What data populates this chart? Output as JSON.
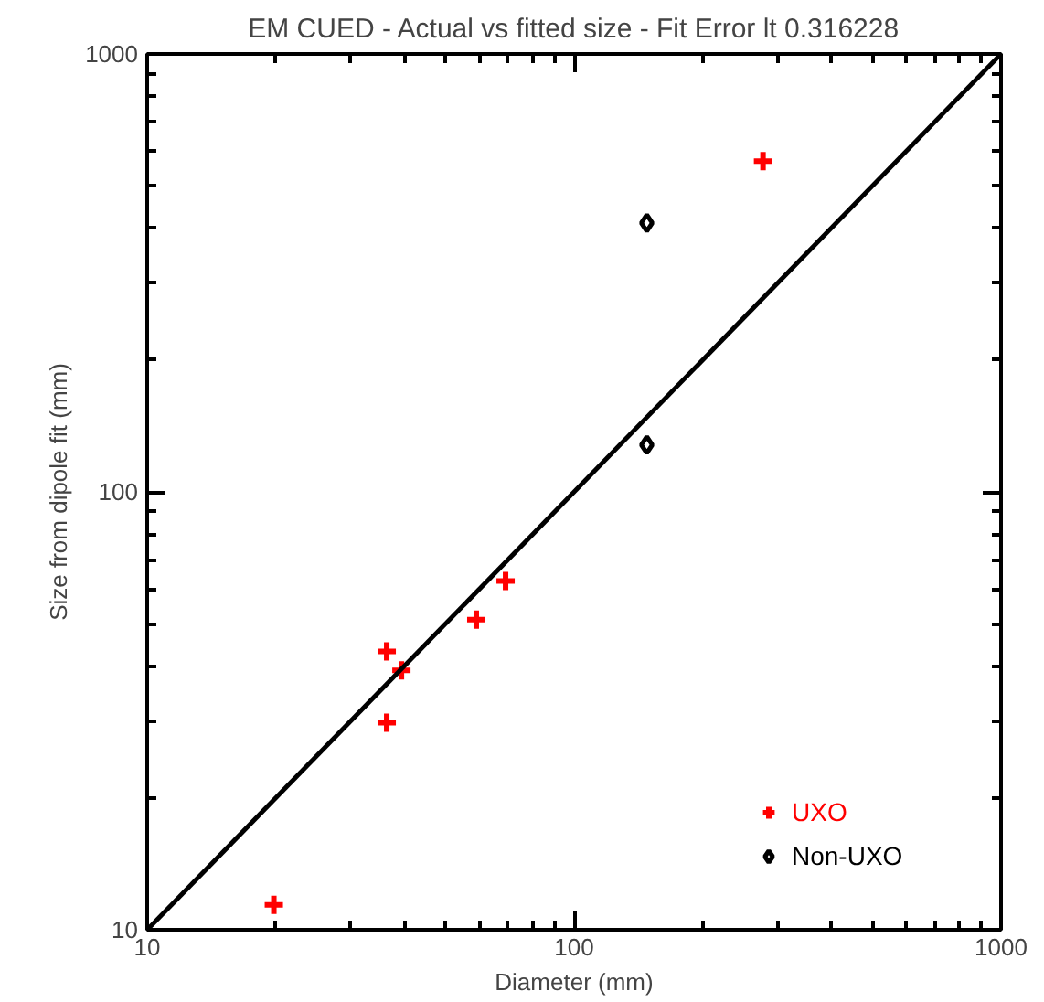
{
  "chart_data": {
    "type": "scatter",
    "title": "EM CUED - Actual vs fitted size - Fit Error lt 0.316228",
    "xlabel": "Diameter (mm)",
    "ylabel": "Size from dipole fit (mm)",
    "log": "xy",
    "xlim": [
      10,
      1000
    ],
    "ylim": [
      10,
      1000
    ],
    "xticks": [
      10,
      100,
      1000
    ],
    "yticks": [
      10,
      100,
      1000
    ],
    "grid": false,
    "legend": "bottom right",
    "series": [
      {
        "name": "UXO",
        "color": "#ff0000",
        "marker": "cross",
        "x": [
          19.8,
          36.4,
          36.4,
          39.4,
          59.0,
          69.1,
          277
        ],
        "values": [
          11.4,
          43.2,
          29.7,
          39.1,
          51.1,
          62.6,
          569
        ]
      },
      {
        "name": "Non-UXO",
        "color": "#000000",
        "marker": "diamond",
        "x": [
          148,
          148
        ],
        "values": [
          411,
          128
        ]
      },
      {
        "type": "line",
        "color": "#000000",
        "x": [
          10,
          1000
        ],
        "values": [
          10,
          1000
        ]
      }
    ]
  }
}
